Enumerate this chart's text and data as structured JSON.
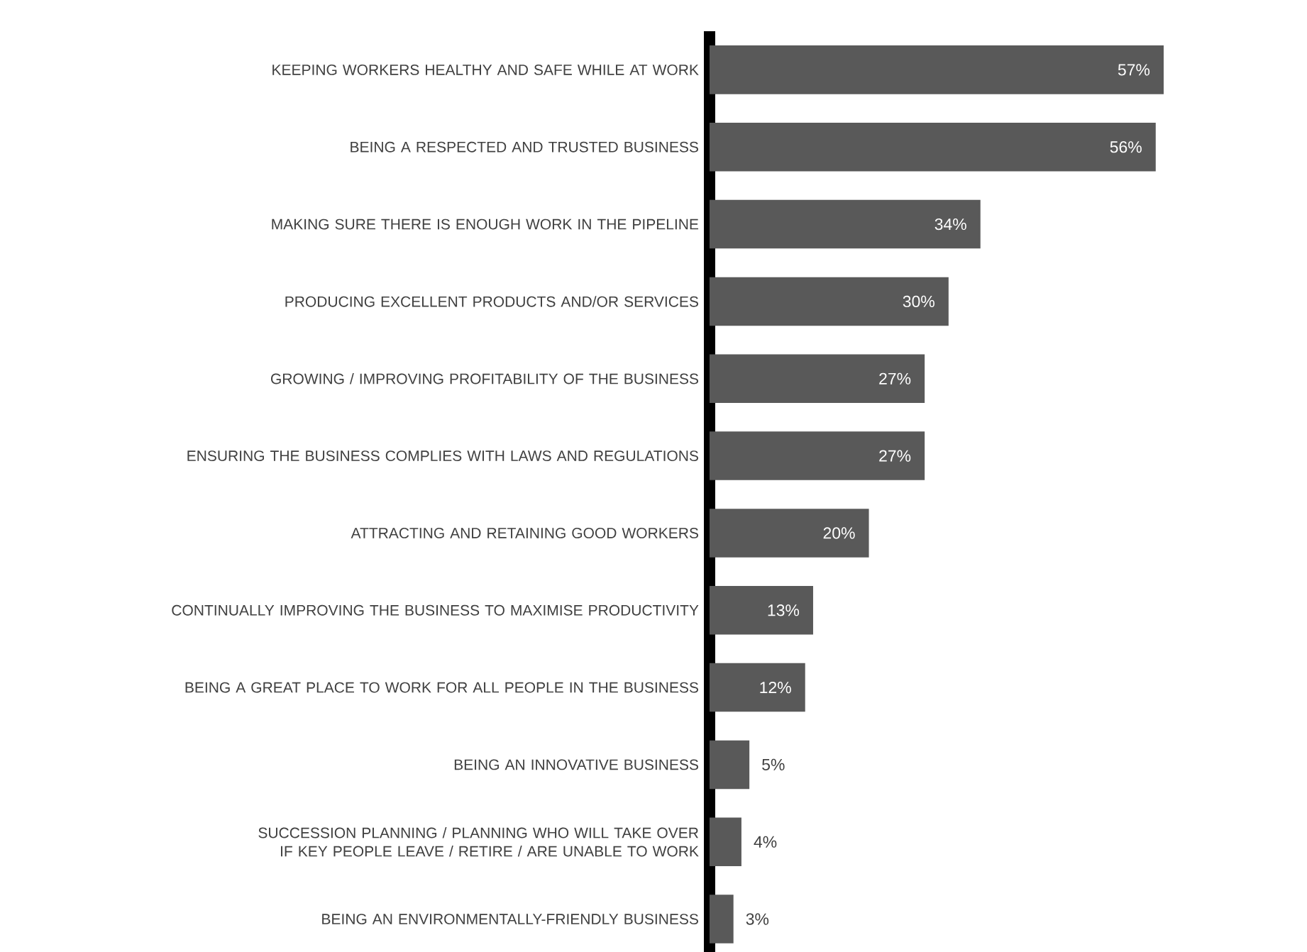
{
  "chart_data": {
    "type": "bar",
    "orientation": "horizontal",
    "color": "#595959",
    "categories": [
      "KEEPING WORKERS HEALTHY AND SAFE WHILE AT WORK",
      "BEING A RESPECTED AND TRUSTED BUSINESS",
      "MAKING SURE THERE IS ENOUGH WORK IN THE PIPELINE",
      "PRODUCING EXCELLENT PRODUCTS AND/OR SERVICES",
      "GROWING  / IMPROVING PROFITABILITY OF THE BUSINESS",
      "ENSURING THE BUSINESS COMPLIES WITH LAWS AND REGULATIONS",
      "ATTRACTING AND RETAINING GOOD WORKERS",
      "CONTINUALLY IMPROVING THE BUSINESS TO MAXIMISE PRODUCTIVITY",
      "BEING A GREAT PLACE TO WORK FOR ALL PEOPLE IN THE BUSINESS",
      "BEING AN INNOVATIVE BUSINESS",
      "SUCCESSION PLANNING / PLANNING WHO WILL TAKE OVER IF KEY PEOPLE LEAVE / RETIRE / ARE UNABLE TO WORK",
      "BEING AN ENVIRONMENTALLY-FRIENDLY BUSINESS"
    ],
    "values": [
      57,
      56,
      34,
      30,
      27,
      27,
      20,
      13,
      12,
      5,
      4,
      3
    ],
    "value_labels": [
      "57%",
      "56%",
      "34%",
      "30%",
      "27%",
      "27%",
      "20%",
      "13%",
      "12%",
      "5%",
      "4%",
      "3%"
    ]
  }
}
